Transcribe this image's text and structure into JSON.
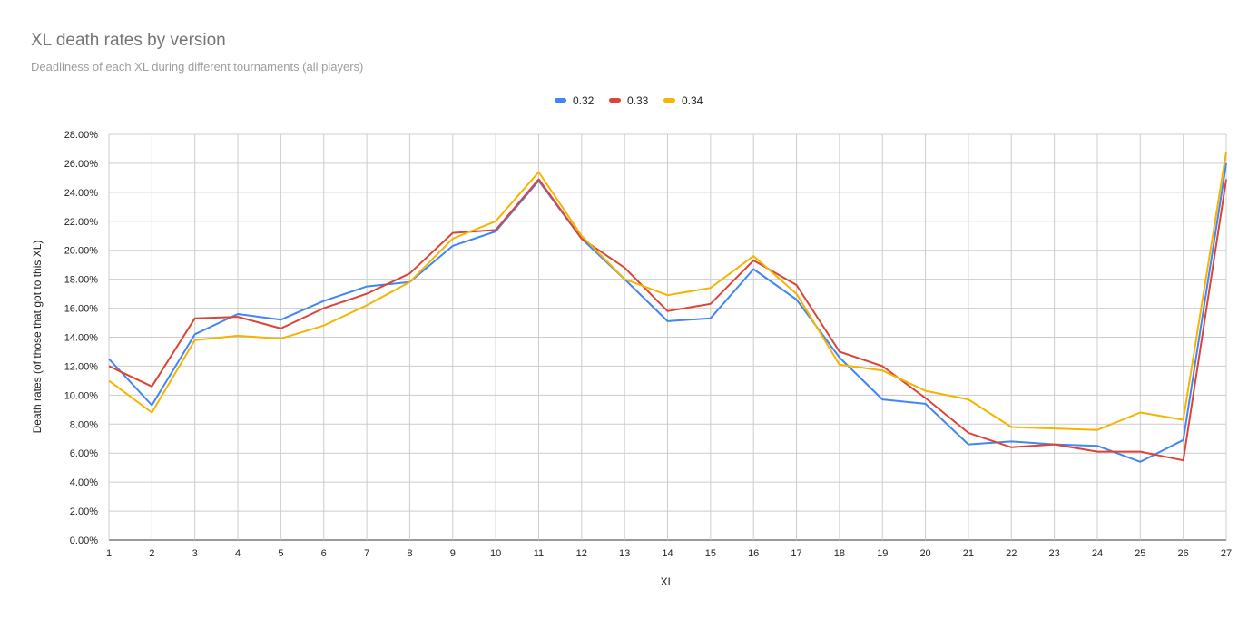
{
  "chart_data": {
    "type": "line",
    "title": "XL death rates by version",
    "subtitle": "Deadliness of each XL during different tournaments (all players)",
    "xlabel": "XL",
    "ylabel": "Death rates (of those that got to this XL)",
    "x": [
      1,
      2,
      3,
      4,
      5,
      6,
      7,
      8,
      9,
      10,
      11,
      12,
      13,
      14,
      15,
      16,
      17,
      18,
      19,
      20,
      21,
      22,
      23,
      24,
      25,
      26,
      27
    ],
    "ylim": [
      0,
      28
    ],
    "yticks": [
      "0.00%",
      "2.00%",
      "4.00%",
      "6.00%",
      "8.00%",
      "10.00%",
      "12.00%",
      "14.00%",
      "16.00%",
      "18.00%",
      "20.00%",
      "22.00%",
      "24.00%",
      "26.00%",
      "28.00%"
    ],
    "grid": true,
    "legend_position": "top",
    "series": [
      {
        "name": "0.32",
        "color": "#4285f4",
        "values": [
          12.5,
          9.3,
          14.2,
          15.6,
          15.2,
          16.5,
          17.5,
          17.8,
          20.3,
          21.3,
          24.8,
          20.8,
          18.0,
          15.1,
          15.3,
          18.7,
          16.6,
          12.6,
          9.7,
          9.4,
          6.6,
          6.8,
          6.6,
          6.5,
          5.4,
          6.9,
          26.0
        ]
      },
      {
        "name": "0.33",
        "color": "#db4437",
        "values": [
          12.0,
          10.6,
          15.3,
          15.4,
          14.6,
          16.0,
          17.0,
          18.4,
          21.2,
          21.4,
          24.9,
          20.8,
          18.8,
          15.8,
          16.3,
          19.3,
          17.6,
          13.0,
          12.0,
          9.8,
          7.4,
          6.4,
          6.6,
          6.1,
          6.1,
          5.5,
          24.9
        ]
      },
      {
        "name": "0.34",
        "color": "#f4b400",
        "values": [
          11.0,
          8.8,
          13.8,
          14.1,
          13.9,
          14.8,
          16.2,
          17.8,
          20.8,
          22.0,
          25.4,
          21.0,
          18.0,
          16.9,
          17.4,
          19.6,
          17.0,
          12.1,
          11.7,
          10.3,
          9.7,
          7.8,
          7.7,
          7.6,
          8.8,
          8.3,
          26.8
        ]
      }
    ]
  }
}
